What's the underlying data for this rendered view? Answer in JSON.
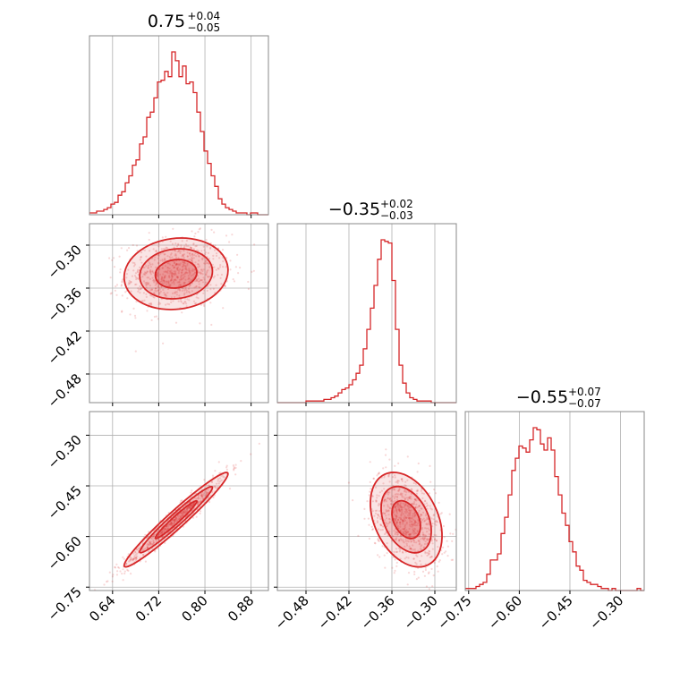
{
  "chart_data": {
    "type": "corner",
    "color": "#d62728",
    "grid": true,
    "parameters": 3,
    "titles": [
      {
        "value": "0.75",
        "plus": "+0.04",
        "minus": "−0.05"
      },
      {
        "value": "−0.35",
        "plus": "+0.02",
        "minus": "−0.03"
      },
      {
        "value": "−0.55",
        "plus": "+0.07",
        "minus": "−0.07"
      }
    ],
    "ranges": [
      [
        0.6,
        0.91
      ],
      [
        -0.52,
        -0.27
      ],
      [
        -0.76,
        -0.23
      ]
    ],
    "ticks": [
      {
        "values": [
          0.64,
          0.72,
          0.8,
          0.88
        ],
        "labels": [
          "0.64",
          "0.72",
          "0.80",
          "0.88"
        ]
      },
      {
        "values": [
          -0.48,
          -0.42,
          -0.36,
          -0.3
        ],
        "labels": [
          "−0.48",
          "−0.42",
          "−0.36",
          "−0.30"
        ]
      },
      {
        "values": [
          -0.75,
          -0.6,
          -0.45,
          -0.3
        ],
        "labels": [
          "−0.75",
          "−0.60",
          "−0.45",
          "−0.30"
        ]
      }
    ],
    "histograms": [
      {
        "param": 0,
        "bin_start": 0.6,
        "bin_width": 0.0062,
        "counts": [
          1,
          1,
          2,
          2,
          3,
          4,
          6,
          7,
          11,
          13,
          18,
          22,
          28,
          31,
          40,
          44,
          55,
          58,
          66,
          75,
          76,
          81,
          78,
          92,
          87,
          78,
          84,
          74,
          75,
          69,
          58,
          47,
          36,
          29,
          22,
          16,
          9,
          6,
          4,
          3,
          2,
          1,
          1,
          1,
          0,
          1,
          1,
          0,
          0,
          0
        ]
      },
      {
        "param": 1,
        "bin_start": -0.52,
        "bin_width": 0.005,
        "counts": [
          0,
          0,
          0,
          0,
          0,
          0,
          0,
          0,
          1,
          1,
          1,
          1,
          1,
          2,
          2,
          3,
          4,
          6,
          8,
          9,
          11,
          14,
          18,
          23,
          33,
          45,
          58,
          72,
          88,
          100,
          99,
          98,
          75,
          45,
          23,
          12,
          6,
          3,
          2,
          1,
          1,
          1,
          1,
          0,
          0,
          0,
          0,
          0,
          0,
          0
        ]
      },
      {
        "param": 2,
        "bin_start": -0.76,
        "bin_width": 0.0106,
        "counts": [
          1,
          1,
          1,
          2,
          3,
          4,
          8,
          15,
          15,
          18,
          28,
          36,
          47,
          59,
          65,
          71,
          70,
          68,
          74,
          80,
          79,
          72,
          69,
          75,
          69,
          56,
          47,
          38,
          32,
          24,
          19,
          12,
          10,
          5,
          4,
          3,
          3,
          2,
          1,
          1,
          0,
          1,
          0,
          0,
          0,
          0,
          0,
          0,
          1,
          0
        ]
      }
    ],
    "scatter_pairs": [
      {
        "x_param": 0,
        "y_param": 1,
        "rho": 0.1,
        "points": 800
      },
      {
        "x_param": 0,
        "y_param": 2,
        "rho": 0.97,
        "points": 800
      },
      {
        "x_param": 1,
        "y_param": 2,
        "rho": -0.35,
        "points": 800
      }
    ],
    "samples_mean": [
      0.75,
      -0.34,
      -0.55
    ],
    "samples_sd": [
      0.045,
      0.025,
      0.07
    ]
  }
}
